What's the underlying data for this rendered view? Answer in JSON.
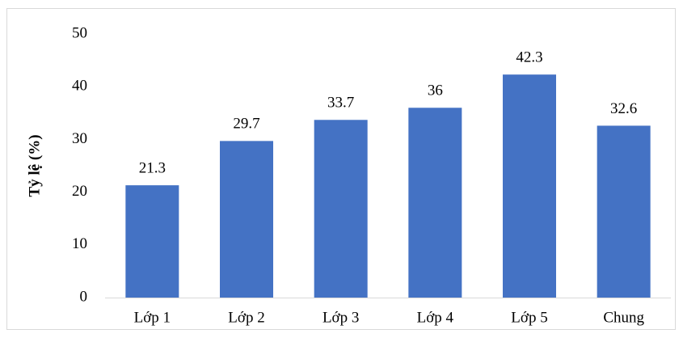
{
  "chart_data": {
    "type": "bar",
    "title": "",
    "xlabel": "",
    "ylabel": "Tỷ lệ (%)",
    "categories": [
      "Lớp 1",
      "Lớp 2",
      "Lớp 3",
      "Lớp 4",
      "Lớp 5",
      "Chung"
    ],
    "values": [
      21.3,
      29.7,
      33.7,
      36,
      42.3,
      32.6
    ],
    "data_labels": [
      "21.3",
      "29.7",
      "33.7",
      "36",
      "42.3",
      "32.6"
    ],
    "ylim": [
      0,
      50
    ],
    "yticks": [
      0,
      10,
      20,
      30,
      40,
      50
    ],
    "grid": false,
    "legend": "none",
    "bar_color": "#4472c4"
  }
}
